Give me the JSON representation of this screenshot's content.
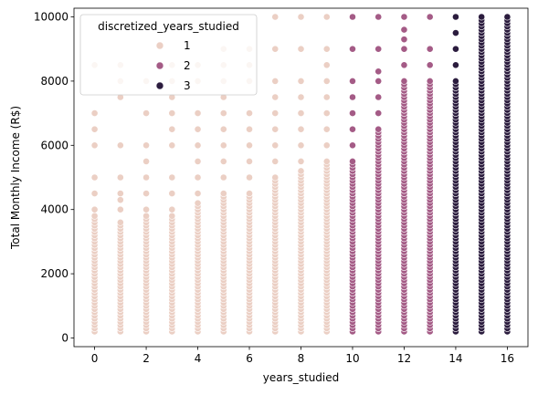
{
  "chart_data": {
    "type": "scatter",
    "xlabel": "years_studied",
    "ylabel": "Total Monthly Income (R$)",
    "xlim": [
      -0.8,
      16.8
    ],
    "ylim": [
      -270,
      10270
    ],
    "xticks": [
      0,
      2,
      4,
      6,
      8,
      10,
      12,
      14,
      16
    ],
    "yticks": [
      0,
      2000,
      4000,
      6000,
      8000,
      10000
    ],
    "grid": false,
    "legend": {
      "title": "discretized_years_studied",
      "placement": "top-left",
      "entries": [
        {
          "label": "1",
          "color": "#ebcfc4"
        },
        {
          "label": "2",
          "color": "#a45b86"
        },
        {
          "label": "3",
          "color": "#2b1c3e"
        }
      ]
    },
    "series": [
      {
        "group": "1",
        "color": "#ebcfc4",
        "columns": [
          {
            "x": 0,
            "dense_range": [
              200,
              3800
            ],
            "points": [
              4000,
              4500,
              5000,
              6000,
              6500,
              7000,
              8500
            ]
          },
          {
            "x": 1,
            "dense_range": [
              200,
              3600
            ],
            "points": [
              4000,
              4300,
              4500,
              5000,
              6000,
              7500,
              8000,
              8500
            ]
          },
          {
            "x": 2,
            "dense_range": [
              200,
              3800
            ],
            "points": [
              4000,
              4500,
              5000,
              5500,
              6000,
              7000,
              8000
            ]
          },
          {
            "x": 3,
            "dense_range": [
              200,
              3800
            ],
            "points": [
              4000,
              4500,
              5000,
              6000,
              6500,
              7000,
              7500,
              8000,
              8500
            ]
          },
          {
            "x": 4,
            "dense_range": [
              200,
              4200
            ],
            "points": [
              4500,
              5000,
              5500,
              6000,
              6500,
              7000,
              8000,
              8500
            ]
          },
          {
            "x": 5,
            "dense_range": [
              200,
              4500
            ],
            "points": [
              5000,
              5500,
              6000,
              6500,
              7000,
              7500,
              8000,
              8500,
              9000
            ]
          },
          {
            "x": 6,
            "dense_range": [
              200,
              4500
            ],
            "points": [
              5000,
              5500,
              6000,
              6500,
              7000,
              8000,
              8500,
              9000
            ]
          },
          {
            "x": 7,
            "dense_range": [
              200,
              5000
            ],
            "points": [
              5500,
              6000,
              6500,
              7000,
              7500,
              8000,
              9000,
              10000
            ]
          },
          {
            "x": 8,
            "dense_range": [
              200,
              5200
            ],
            "points": [
              5500,
              6000,
              6500,
              7000,
              7500,
              8000,
              9000,
              10000
            ]
          },
          {
            "x": 9,
            "dense_range": [
              200,
              5500
            ],
            "points": [
              6000,
              6500,
              7000,
              7500,
              8000,
              8500,
              9000,
              10000
            ]
          }
        ]
      },
      {
        "group": "2",
        "color": "#a45b86",
        "columns": [
          {
            "x": 10,
            "dense_range": [
              200,
              5500
            ],
            "points": [
              6000,
              6500,
              7000,
              7500,
              8000,
              9000,
              10000
            ]
          },
          {
            "x": 11,
            "dense_range": [
              200,
              6500
            ],
            "points": [
              7000,
              7500,
              8000,
              8300,
              9000,
              10000
            ]
          },
          {
            "x": 12,
            "dense_range": [
              200,
              8000
            ],
            "points": [
              8500,
              9000,
              9300,
              9600,
              10000
            ]
          },
          {
            "x": 13,
            "dense_range": [
              200,
              8000
            ],
            "points": [
              8500,
              9000,
              10000
            ]
          }
        ]
      },
      {
        "group": "3",
        "color": "#2b1c3e",
        "columns": [
          {
            "x": 14,
            "dense_range": [
              200,
              8000
            ],
            "points": [
              8500,
              9000,
              9500,
              10000
            ]
          },
          {
            "x": 15,
            "dense_range": [
              200,
              10000
            ],
            "points": []
          },
          {
            "x": 16,
            "dense_range": [
              200,
              10000
            ],
            "points": []
          }
        ]
      }
    ]
  }
}
